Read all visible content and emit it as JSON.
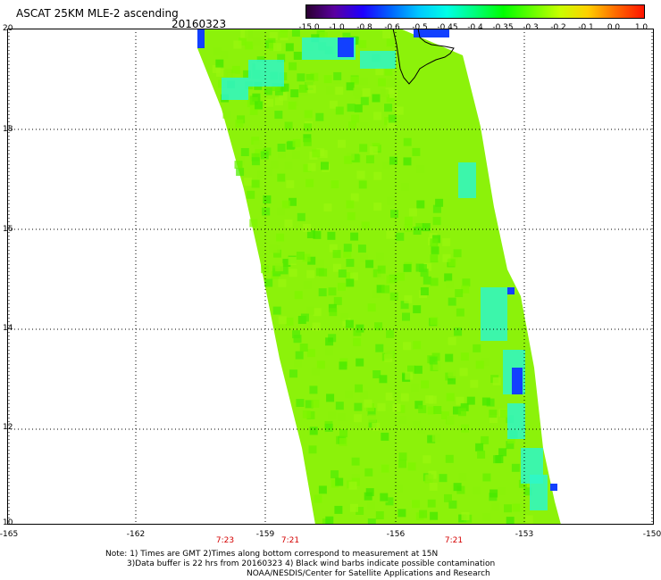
{
  "header": {
    "title": "ASCAT 25KM MLE-2 ascending",
    "date": "20160323"
  },
  "colorbar": {
    "ticks": [
      "-15.0",
      "-1.0",
      "-0.8",
      "-0.6",
      "-0.5",
      "-0.45",
      "-0.4",
      "-0.35",
      "-0.3",
      "-0.2",
      "-0.1",
      "0.0",
      "1.0"
    ],
    "colors": [
      "#2a0030",
      "#5a00a0",
      "#1e00ff",
      "#0064ff",
      "#00c8ff",
      "#00ffe6",
      "#00ff7a",
      "#00ff00",
      "#64ff00",
      "#c8ff00",
      "#ffd000",
      "#ff6a00",
      "#ff1400"
    ]
  },
  "map": {
    "y_labels": [
      "20",
      "18",
      "16",
      "14",
      "12",
      "10"
    ],
    "x_labels": [
      "-165",
      "-162",
      "-159",
      "-156",
      "-153",
      "-150"
    ],
    "time_labels": [
      "7:23",
      "7:21",
      "7:21"
    ]
  },
  "notes": {
    "line1": "Note: 1) Times are GMT 2)Times along bottom correspond to measurement at 15N",
    "line2": "3)Data buffer is 22 hrs from 20160323 4) Black wind barbs indicate possible contamination",
    "line3": "NOAA/NESDIS/Center for Satellite Applications and Research"
  }
}
